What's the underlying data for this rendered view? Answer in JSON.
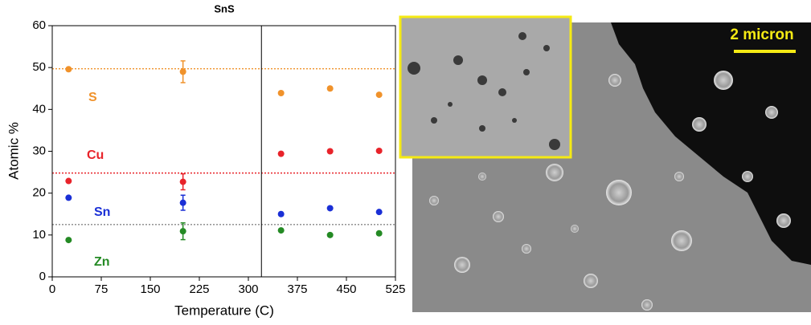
{
  "chart_data": {
    "type": "scatter",
    "title": "SnS",
    "xlabel": "Temperature  (C)",
    "ylabel": "Atomic %",
    "xlim": [
      0,
      525
    ],
    "xticks": [
      0,
      75,
      150,
      225,
      300,
      375,
      450,
      525
    ],
    "ylim": [
      0,
      60
    ],
    "yticks": [
      0,
      10,
      20,
      30,
      40,
      50,
      60
    ],
    "x": [
      25,
      200,
      350,
      425,
      500
    ],
    "series": [
      {
        "name": "S",
        "color": "#f0922b",
        "values": [
          49.6,
          49,
          43.9,
          45,
          43.5
        ],
        "errors": [
          null,
          2.6,
          null,
          null,
          null
        ]
      },
      {
        "name": "Cu",
        "color": "#e8232a",
        "values": [
          22.9,
          22.7,
          29.4,
          30,
          30.1
        ],
        "errors": [
          null,
          1.9,
          null,
          null,
          null
        ]
      },
      {
        "name": "Sn",
        "color": "#1a2fd6",
        "values": [
          18.9,
          17.7,
          15,
          16.4,
          15.5
        ],
        "errors": [
          null,
          1.8,
          null,
          null,
          null
        ]
      },
      {
        "name": "Zn",
        "color": "#248a24",
        "values": [
          8.8,
          10.9,
          11.1,
          10,
          10.4
        ],
        "errors": [
          null,
          2,
          null,
          null,
          null
        ]
      }
    ],
    "hlines": [
      {
        "value": 49.7,
        "color": "#f0922b"
      },
      {
        "value": 24.8,
        "color": "#e8232a"
      },
      {
        "value": 12.5,
        "color": "#888888"
      }
    ],
    "vline": 320
  },
  "image": {
    "scale_bar_label": "2 micron"
  }
}
